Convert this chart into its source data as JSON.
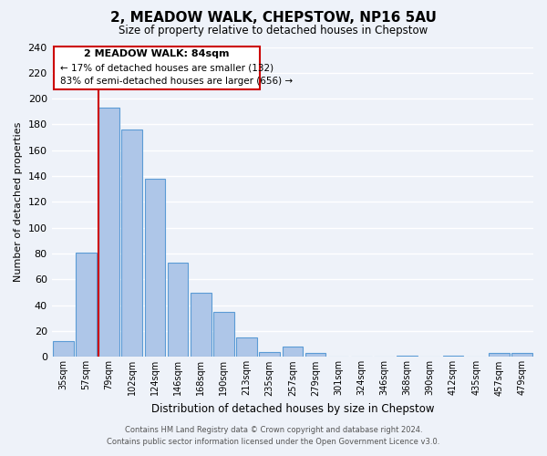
{
  "title": "2, MEADOW WALK, CHEPSTOW, NP16 5AU",
  "subtitle": "Size of property relative to detached houses in Chepstow",
  "xlabel": "Distribution of detached houses by size in Chepstow",
  "ylabel": "Number of detached properties",
  "bar_labels": [
    "35sqm",
    "57sqm",
    "79sqm",
    "102sqm",
    "124sqm",
    "146sqm",
    "168sqm",
    "190sqm",
    "213sqm",
    "235sqm",
    "257sqm",
    "279sqm",
    "301sqm",
    "324sqm",
    "346sqm",
    "368sqm",
    "390sqm",
    "412sqm",
    "435sqm",
    "457sqm",
    "479sqm"
  ],
  "bar_heights": [
    12,
    81,
    193,
    176,
    138,
    73,
    50,
    35,
    15,
    4,
    8,
    3,
    0,
    0,
    0,
    1,
    0,
    1,
    0,
    3,
    3
  ],
  "bar_color": "#aec6e8",
  "bar_edge_color": "#5b9bd5",
  "ylim": [
    0,
    240
  ],
  "yticks": [
    0,
    20,
    40,
    60,
    80,
    100,
    120,
    140,
    160,
    180,
    200,
    220,
    240
  ],
  "property_line_bar_idx": 2,
  "property_sqm": 84,
  "annotation_title": "2 MEADOW WALK: 84sqm",
  "annotation_line1": "← 17% of detached houses are smaller (132)",
  "annotation_line2": "83% of semi-detached houses are larger (656) →",
  "annotation_box_color": "#ffffff",
  "annotation_box_edge_color": "#cc0000",
  "vline_color": "#cc0000",
  "background_color": "#eef2f9",
  "grid_color": "#ffffff",
  "footer_line1": "Contains HM Land Registry data © Crown copyright and database right 2024.",
  "footer_line2": "Contains public sector information licensed under the Open Government Licence v3.0."
}
